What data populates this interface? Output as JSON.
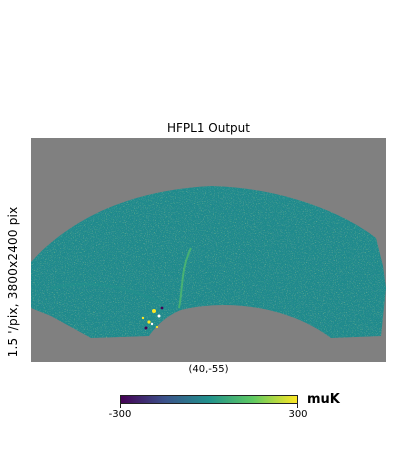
{
  "figure": {
    "title": "HFPL1 Output",
    "side_label": "1.5 '/pix,   3800x2400 pix",
    "center_label": "(40,-55)",
    "colorbar": {
      "min_label": "-300",
      "max_label": "300",
      "unit": "muK",
      "colormap": "viridis",
      "colors": [
        "#440154",
        "#3b528b",
        "#21918c",
        "#5ec962",
        "#fde725"
      ]
    },
    "background_color": "#808080",
    "map_base_color": "#1f8a8c"
  }
}
